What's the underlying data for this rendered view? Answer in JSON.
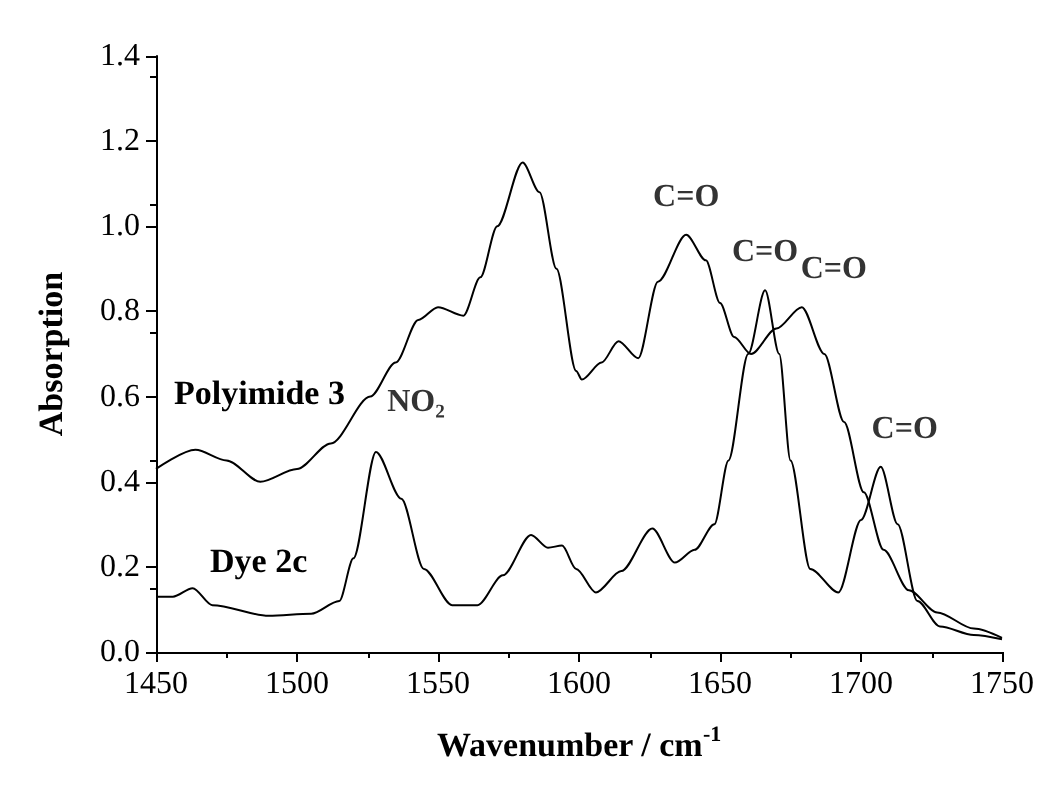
{
  "chart_data": {
    "type": "line",
    "xlabel": "Wavenumber / cm$^{-1}$",
    "ylabel": "Absorption",
    "xlim": [
      1450,
      1750
    ],
    "xticks": [
      1450,
      1500,
      1550,
      1600,
      1650,
      1700,
      1750
    ],
    "ylim": [
      0,
      1.4
    ],
    "yticks": [
      {
        "value": 0,
        "label": "0.0"
      },
      {
        "value": 0.2,
        "label": "0.2"
      },
      {
        "value": 0.4,
        "label": "0.4"
      },
      {
        "value": 0.6,
        "label": "0.6"
      },
      {
        "value": 0.8,
        "label": "0.8"
      },
      {
        "value": 1.0,
        "label": "1.0"
      },
      {
        "value": 1.2,
        "label": "1.2"
      },
      {
        "value": 1.4,
        "label": "1.4"
      }
    ],
    "grid": false,
    "legend": false,
    "marker": "none",
    "line_style": "solid",
    "series": [
      {
        "name": "Polyimide 3",
        "color": "#000000",
        "x": [
          1450,
          1464,
          1475,
          1487,
          1500,
          1512,
          1526,
          1535,
          1543,
          1550,
          1559,
          1565,
          1571,
          1580,
          1586,
          1592,
          1599,
          1601,
          1608,
          1614,
          1621,
          1628,
          1638,
          1645,
          1650,
          1655,
          1661,
          1670,
          1679,
          1687,
          1694,
          1701,
          1708,
          1717,
          1727,
          1740,
          1750
        ],
        "values": [
          0.43,
          0.475,
          0.45,
          0.4,
          0.43,
          0.49,
          0.6,
          0.68,
          0.78,
          0.81,
          0.79,
          0.88,
          1.0,
          1.15,
          1.08,
          0.9,
          0.66,
          0.64,
          0.68,
          0.73,
          0.69,
          0.87,
          0.98,
          0.92,
          0.82,
          0.74,
          0.7,
          0.76,
          0.81,
          0.7,
          0.54,
          0.375,
          0.24,
          0.145,
          0.093,
          0.055,
          0.033
        ]
      },
      {
        "name": "Dye 2c",
        "color": "#000000",
        "x": [
          1450,
          1456,
          1463,
          1470,
          1490,
          1505,
          1515,
          1520,
          1528,
          1537,
          1545,
          1555,
          1564,
          1573,
          1583,
          1589,
          1594,
          1599,
          1606,
          1615,
          1626,
          1634,
          1641,
          1648,
          1653,
          1660,
          1666,
          1671,
          1675,
          1682,
          1692,
          1700,
          1707,
          1713,
          1720,
          1728,
          1740,
          1750
        ],
        "values": [
          0.13,
          0.13,
          0.15,
          0.11,
          0.085,
          0.09,
          0.12,
          0.22,
          0.47,
          0.36,
          0.195,
          0.11,
          0.11,
          0.18,
          0.275,
          0.245,
          0.25,
          0.195,
          0.14,
          0.19,
          0.29,
          0.21,
          0.24,
          0.3,
          0.45,
          0.7,
          0.85,
          0.7,
          0.45,
          0.195,
          0.14,
          0.31,
          0.435,
          0.3,
          0.12,
          0.06,
          0.04,
          0.03
        ]
      }
    ],
    "annotations": [
      {
        "text": "NO₂",
        "x": 1528,
        "y": 0.47
      },
      {
        "text": "C=O",
        "x": 1638,
        "y": 0.98
      },
      {
        "text": "C=O",
        "x": 1666,
        "y": 0.85
      },
      {
        "text": "C=O",
        "x": 1679,
        "y": 0.81
      },
      {
        "text": "C=O",
        "x": 1707,
        "y": 0.435
      }
    ]
  }
}
